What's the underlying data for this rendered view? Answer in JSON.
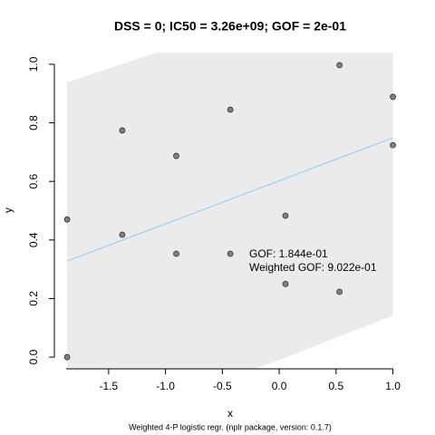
{
  "chart_data": {
    "type": "scatter",
    "title": "DSS = 0; IC50 = 3.26e+09; GOF = 2e-01",
    "x_label": "x",
    "y_label": "y",
    "footnote": "Weighted 4-P logistic regr. (nplr package, version: 0.1.7)",
    "annotations": [
      "GOF: 1.844e-01",
      "Weighted GOF: 9.022e-01"
    ],
    "xlim": [
      -1.985,
      1.115
    ],
    "ylim": [
      -0.04,
      1.04
    ],
    "xticks": [
      -1.5,
      {
        "value": -1.0,
        "label": "-1.0"
      },
      -0.5,
      {
        "value": 0.0,
        "label": "0.0"
      },
      0.5,
      {
        "value": 1.0,
        "label": "1.0"
      }
    ],
    "yticks": [
      {
        "value": 0.0,
        "label": "0.0"
      },
      0.2,
      0.4,
      0.6,
      0.8,
      {
        "value": 1.0,
        "label": "1.0"
      }
    ],
    "series": [
      {
        "color": "#808080",
        "x": [
          -1.865,
          -1.865,
          -1.38,
          -1.38,
          -0.905,
          -0.905,
          -0.43,
          -0.43,
          0.055,
          0.055,
          0.53,
          0.53,
          1.0,
          1.0
        ],
        "values": [
          0.47,
          0.0,
          0.774,
          0.418,
          0.687,
          0.353,
          0.845,
          0.353,
          0.483,
          0.25,
          0.997,
          0.223,
          0.889,
          0.724
        ]
      }
    ],
    "fit": {
      "color": "#87cefa",
      "x": [
        -1.865,
        1.0
      ],
      "values": [
        0.328,
        0.749
      ]
    },
    "band": {
      "color": "#ebebeb",
      "x": [
        -1.865,
        -1.0,
        0.0,
        1.0
      ],
      "upper": [
        0.938,
        1.05,
        1.2,
        1.3
      ],
      "lower": [
        -0.25,
        -0.15,
        -0.01,
        0.142
      ]
    }
  }
}
